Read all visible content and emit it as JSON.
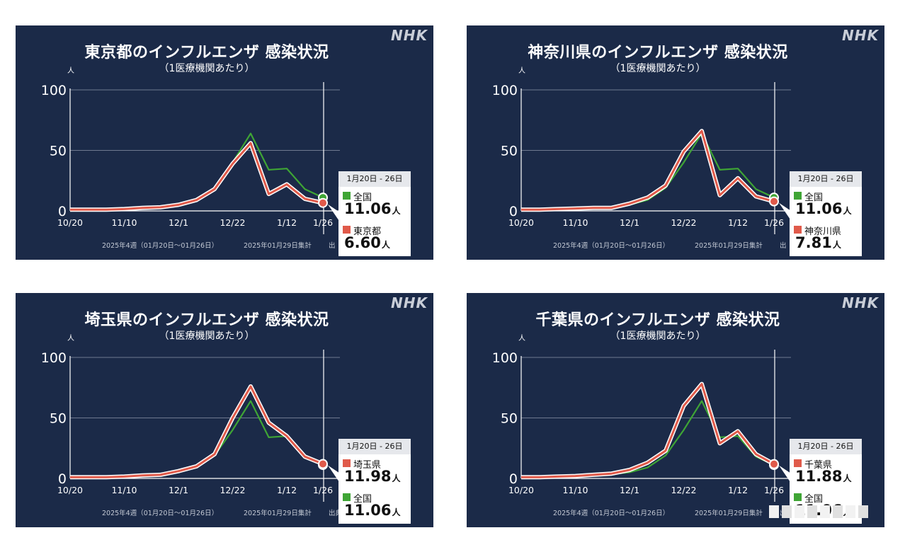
{
  "panels": [
    {
      "title": "東京都のインフルエンザ 感染状況",
      "subtitle": "（1医療機関あたり）",
      "logo": "NHK",
      "unit": "人",
      "footer_week": "2025年4週（01月20日～01月26日）",
      "footer_date": "2025年01月29日集計",
      "footer_source": "出",
      "legend_header": "1月20日 - 26日",
      "legend_order": [
        "national",
        "local"
      ],
      "unit_label": "人",
      "local_name": "東京都",
      "local_value": "6.60",
      "national_name": "全国",
      "national_value": "11.06"
    },
    {
      "title": "神奈川県のインフルエンザ 感染状況",
      "subtitle": "（1医療機関あたり）",
      "logo": "NHK",
      "unit": "人",
      "footer_week": "2025年4週（01月20日～01月26日）",
      "footer_date": "2025年01月29日集計",
      "footer_source": "出",
      "legend_header": "1月20日 - 26日",
      "legend_order": [
        "national",
        "local"
      ],
      "unit_label": "人",
      "local_name": "神奈川県",
      "local_value": "7.81",
      "national_name": "全国",
      "national_value": "11.06"
    },
    {
      "title": "埼玉県のインフルエンザ 感染状況",
      "subtitle": "（1医療機関あたり）",
      "logo": "NHK",
      "unit": "人",
      "footer_week": "2025年4週（01月20日～01月26日）",
      "footer_date": "2025年01月29日集計",
      "footer_source": "出典：国立感染症研究所",
      "legend_header": "1月20日 - 26日",
      "legend_order": [
        "local",
        "national"
      ],
      "unit_label": "人",
      "local_name": "埼玉県",
      "local_value": "11.98",
      "national_name": "全国",
      "national_value": "11.06"
    },
    {
      "title": "千葉県のインフルエンザ 感染状況",
      "subtitle": "（1医療機関あたり）",
      "logo": "NHK",
      "unit": "人",
      "footer_week": "2025年4週（01月20日～01月26日）",
      "footer_date": "2025年01月29日集計",
      "footer_source": "出",
      "legend_header": "1月20日 - 26日",
      "legend_order": [
        "local",
        "national"
      ],
      "unit_label": "人",
      "local_name": "千葉県",
      "local_value": "11.88",
      "national_name": "全国",
      "national_value": "11.06"
    }
  ],
  "colors": {
    "background": "#1b2a48",
    "national_line": "#3fa535",
    "local_line": "#e05a4a",
    "axis_text": "#ffffff",
    "gridline": "#8c95a8"
  },
  "chart_data": [
    {
      "type": "line",
      "title": "東京都のインフルエンザ 感染状況",
      "x": [
        "10/20",
        "10/27",
        "11/3",
        "11/10",
        "11/17",
        "11/24",
        "12/1",
        "12/8",
        "12/15",
        "12/22",
        "12/29",
        "1/5",
        "1/12",
        "1/19",
        "1/26"
      ],
      "tick_labels": [
        "10/20",
        "11/10",
        "12/1",
        "12/22",
        "1/12",
        "1/26"
      ],
      "ylim": [
        0,
        100
      ],
      "yticks": [
        0,
        50,
        100
      ],
      "series": [
        {
          "name": "全国",
          "values": [
            1,
            1,
            1.5,
            2,
            3,
            3.5,
            5,
            9,
            19,
            40,
            64,
            34,
            35,
            18,
            11.06
          ]
        },
        {
          "name": "東京都",
          "values": [
            1,
            1,
            1,
            1.5,
            2.5,
            3,
            5,
            9,
            18,
            39,
            56,
            14,
            22,
            10,
            6.6
          ]
        }
      ]
    },
    {
      "type": "line",
      "title": "神奈川県のインフルエンザ 感染状況",
      "x": [
        "10/20",
        "10/27",
        "11/3",
        "11/10",
        "11/17",
        "11/24",
        "12/1",
        "12/8",
        "12/15",
        "12/22",
        "12/29",
        "1/5",
        "1/12",
        "1/19",
        "1/26"
      ],
      "tick_labels": [
        "10/20",
        "11/10",
        "12/1",
        "12/22",
        "1/12",
        "1/26"
      ],
      "ylim": [
        0,
        100
      ],
      "yticks": [
        0,
        50,
        100
      ],
      "series": [
        {
          "name": "全国",
          "values": [
            1,
            1,
            1.5,
            2,
            3,
            3.5,
            5,
            9,
            19,
            40,
            64,
            34,
            35,
            18,
            11.06
          ]
        },
        {
          "name": "神奈川県",
          "values": [
            1,
            1,
            1.5,
            2,
            2.5,
            2.5,
            6,
            11,
            21,
            49,
            66,
            13,
            27,
            12,
            7.81
          ]
        }
      ]
    },
    {
      "type": "line",
      "title": "埼玉県のインフルエンザ 感染状況",
      "x": [
        "10/20",
        "10/27",
        "11/3",
        "11/10",
        "11/17",
        "11/24",
        "12/1",
        "12/8",
        "12/15",
        "12/22",
        "12/29",
        "1/5",
        "1/12",
        "1/19",
        "1/26"
      ],
      "tick_labels": [
        "10/20",
        "11/10",
        "12/1",
        "12/22",
        "1/12",
        "1/26"
      ],
      "ylim": [
        0,
        100
      ],
      "yticks": [
        0,
        50,
        100
      ],
      "series": [
        {
          "name": "全国",
          "values": [
            1,
            1,
            1.5,
            2,
            3,
            3.5,
            5,
            9,
            19,
            40,
            64,
            34,
            35,
            18,
            11.06
          ]
        },
        {
          "name": "埼玉県",
          "values": [
            1,
            1,
            1,
            1.5,
            2.5,
            3,
            6,
            10,
            20,
            50,
            76,
            46,
            35,
            18,
            11.98
          ]
        }
      ]
    },
    {
      "type": "line",
      "title": "千葉県のインフルエンザ 感染状況",
      "x": [
        "10/20",
        "10/27",
        "11/3",
        "11/10",
        "11/17",
        "11/24",
        "12/1",
        "12/8",
        "12/15",
        "12/22",
        "12/29",
        "1/5",
        "1/12",
        "1/19",
        "1/26"
      ],
      "tick_labels": [
        "10/20",
        "11/10",
        "12/1",
        "12/22",
        "1/12",
        "1/26"
      ],
      "ylim": [
        0,
        100
      ],
      "yticks": [
        0,
        50,
        100
      ],
      "series": [
        {
          "name": "全国",
          "values": [
            1,
            1,
            1.5,
            2,
            3,
            3.5,
            5,
            9,
            19,
            40,
            64,
            34,
            35,
            18,
            11.06
          ]
        },
        {
          "name": "千葉県",
          "values": [
            1,
            1,
            1.5,
            2,
            3,
            4,
            7,
            13,
            23,
            60,
            78,
            29,
            39,
            20,
            11.88
          ]
        }
      ]
    }
  ]
}
